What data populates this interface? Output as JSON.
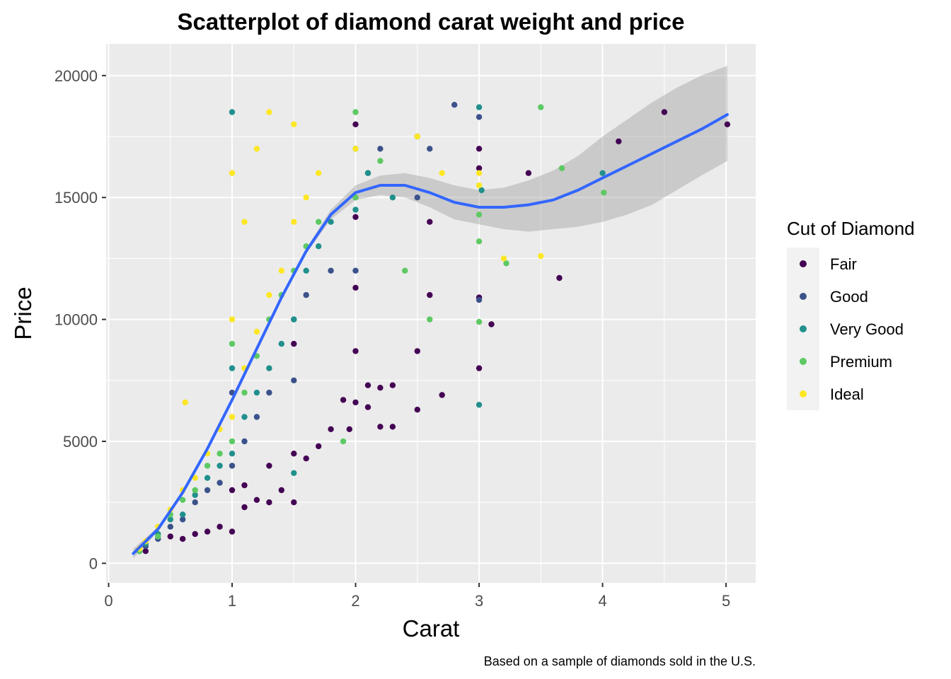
{
  "chart_data": {
    "type": "scatter",
    "title": "Scatterplot of diamond carat weight and price",
    "xlabel": "Carat",
    "ylabel": "Price",
    "caption": "Based on a sample of diamonds sold in the U.S.",
    "xlim": [
      -0.02,
      5.24
    ],
    "ylim": [
      -800,
      21300
    ],
    "x_ticks": [
      0,
      1,
      2,
      3,
      4,
      5
    ],
    "y_ticks": [
      0,
      5000,
      10000,
      15000,
      20000
    ],
    "x_tick_labels": [
      "0",
      "1",
      "2",
      "3",
      "4",
      "5"
    ],
    "y_tick_labels": [
      "0",
      "5000",
      "10000",
      "15000",
      "20000"
    ],
    "grid": true,
    "legend": {
      "title": "Cut of Diamond",
      "position": "right",
      "entries": [
        {
          "label": "Fair",
          "color": "#440154"
        },
        {
          "label": "Good",
          "color": "#3b528b"
        },
        {
          "label": "Very Good",
          "color": "#21908c"
        },
        {
          "label": "Premium",
          "color": "#5dc963"
        },
        {
          "label": "Ideal",
          "color": "#fde725"
        }
      ]
    },
    "series": [
      {
        "name": "Fair",
        "color": "#440154",
        "points": [
          [
            0.25,
            500
          ],
          [
            0.3,
            500
          ],
          [
            0.5,
            1100
          ],
          [
            0.6,
            1000
          ],
          [
            0.7,
            1200
          ],
          [
            0.8,
            1300
          ],
          [
            0.9,
            1500
          ],
          [
            1.0,
            1300
          ],
          [
            1.0,
            3000
          ],
          [
            1.1,
            2300
          ],
          [
            1.1,
            3200
          ],
          [
            1.2,
            2600
          ],
          [
            1.3,
            2500
          ],
          [
            1.3,
            4000
          ],
          [
            1.4,
            3000
          ],
          [
            1.5,
            2500
          ],
          [
            1.5,
            4500
          ],
          [
            1.5,
            9000
          ],
          [
            1.6,
            4300
          ],
          [
            1.7,
            4800
          ],
          [
            1.8,
            5500
          ],
          [
            1.9,
            6700
          ],
          [
            1.95,
            5500
          ],
          [
            2.0,
            6600
          ],
          [
            2.0,
            8700
          ],
          [
            2.0,
            11300
          ],
          [
            2.0,
            14200
          ],
          [
            2.0,
            18000
          ],
          [
            2.1,
            6400
          ],
          [
            2.1,
            7300
          ],
          [
            2.2,
            5600
          ],
          [
            2.2,
            7200
          ],
          [
            2.3,
            5600
          ],
          [
            2.3,
            7300
          ],
          [
            2.5,
            6300
          ],
          [
            2.5,
            8700
          ],
          [
            2.6,
            11000
          ],
          [
            2.6,
            14000
          ],
          [
            2.7,
            6900
          ],
          [
            3.0,
            8000
          ],
          [
            3.0,
            10900
          ],
          [
            3.0,
            16200
          ],
          [
            3.0,
            17000
          ],
          [
            3.1,
            9800
          ],
          [
            3.4,
            16000
          ],
          [
            3.65,
            11700
          ],
          [
            4.13,
            17300
          ],
          [
            4.5,
            18500
          ],
          [
            5.01,
            18000
          ]
        ]
      },
      {
        "name": "Good",
        "color": "#3b528b",
        "points": [
          [
            0.3,
            700
          ],
          [
            0.4,
            1000
          ],
          [
            0.5,
            1500
          ],
          [
            0.6,
            1800
          ],
          [
            0.7,
            2500
          ],
          [
            0.8,
            3000
          ],
          [
            0.9,
            3300
          ],
          [
            1.0,
            4000
          ],
          [
            1.0,
            7000
          ],
          [
            1.1,
            5000
          ],
          [
            1.2,
            6000
          ],
          [
            1.3,
            7000
          ],
          [
            1.5,
            7500
          ],
          [
            1.5,
            10000
          ],
          [
            1.6,
            11000
          ],
          [
            1.8,
            12000
          ],
          [
            2.0,
            12000
          ],
          [
            2.0,
            15000
          ],
          [
            2.1,
            16000
          ],
          [
            2.2,
            17000
          ],
          [
            2.5,
            15000
          ],
          [
            2.6,
            17000
          ],
          [
            2.8,
            18800
          ],
          [
            3.0,
            10800
          ],
          [
            3.0,
            18300
          ]
        ]
      },
      {
        "name": "Very Good",
        "color": "#21908c",
        "points": [
          [
            0.3,
            800
          ],
          [
            0.4,
            1200
          ],
          [
            0.5,
            1800
          ],
          [
            0.6,
            2000
          ],
          [
            0.7,
            2800
          ],
          [
            0.8,
            3500
          ],
          [
            0.9,
            4000
          ],
          [
            1.0,
            4500
          ],
          [
            1.0,
            8000
          ],
          [
            1.0,
            18500
          ],
          [
            1.1,
            6000
          ],
          [
            1.2,
            7000
          ],
          [
            1.3,
            8000
          ],
          [
            1.4,
            9000
          ],
          [
            1.5,
            10000
          ],
          [
            1.5,
            3700
          ],
          [
            1.6,
            12000
          ],
          [
            1.7,
            13000
          ],
          [
            1.8,
            14000
          ],
          [
            2.0,
            14500
          ],
          [
            2.0,
            17000
          ],
          [
            2.1,
            16000
          ],
          [
            2.3,
            15000
          ],
          [
            2.5,
            17500
          ],
          [
            3.0,
            6500
          ],
          [
            3.0,
            18700
          ],
          [
            3.02,
            15300
          ],
          [
            4.0,
            16000
          ]
        ]
      },
      {
        "name": "Premium",
        "color": "#5dc963",
        "points": [
          [
            0.25,
            500
          ],
          [
            0.4,
            1100
          ],
          [
            0.5,
            2000
          ],
          [
            0.6,
            2600
          ],
          [
            0.7,
            3000
          ],
          [
            0.8,
            4000
          ],
          [
            0.9,
            4500
          ],
          [
            1.0,
            5000
          ],
          [
            1.0,
            9000
          ],
          [
            1.1,
            7000
          ],
          [
            1.2,
            8500
          ],
          [
            1.3,
            10000
          ],
          [
            1.4,
            11000
          ],
          [
            1.5,
            12000
          ],
          [
            1.6,
            13000
          ],
          [
            1.7,
            14000
          ],
          [
            1.9,
            5000
          ],
          [
            2.0,
            15000
          ],
          [
            2.0,
            18500
          ],
          [
            2.2,
            16500
          ],
          [
            2.4,
            12000
          ],
          [
            2.6,
            10000
          ],
          [
            3.0,
            13200
          ],
          [
            3.0,
            14300
          ],
          [
            3.0,
            9900
          ],
          [
            3.22,
            12300
          ],
          [
            3.5,
            18700
          ],
          [
            3.67,
            16200
          ],
          [
            4.01,
            15200
          ]
        ]
      },
      {
        "name": "Ideal",
        "color": "#fde725",
        "points": [
          [
            0.25,
            600
          ],
          [
            0.3,
            900
          ],
          [
            0.4,
            1500
          ],
          [
            0.5,
            2200
          ],
          [
            0.6,
            3000
          ],
          [
            0.62,
            6600
          ],
          [
            0.7,
            3500
          ],
          [
            0.8,
            4500
          ],
          [
            0.9,
            5500
          ],
          [
            1.0,
            6000
          ],
          [
            1.0,
            10000
          ],
          [
            1.0,
            16000
          ],
          [
            1.1,
            8000
          ],
          [
            1.1,
            14000
          ],
          [
            1.2,
            9500
          ],
          [
            1.2,
            17000
          ],
          [
            1.3,
            11000
          ],
          [
            1.3,
            18500
          ],
          [
            1.4,
            12000
          ],
          [
            1.5,
            14000
          ],
          [
            1.5,
            18000
          ],
          [
            1.6,
            15000
          ],
          [
            1.7,
            16000
          ],
          [
            2.0,
            17000
          ],
          [
            2.5,
            17500
          ],
          [
            2.7,
            16000
          ],
          [
            3.0,
            15500
          ],
          [
            3.0,
            16000
          ],
          [
            3.2,
            12500
          ],
          [
            3.5,
            12600
          ]
        ]
      }
    ],
    "smooth": {
      "name": "LOESS fit",
      "color": "#3366ff",
      "x": [
        0.2,
        0.4,
        0.6,
        0.8,
        1.0,
        1.2,
        1.4,
        1.6,
        1.8,
        2.0,
        2.2,
        2.4,
        2.6,
        2.8,
        3.0,
        3.2,
        3.4,
        3.6,
        3.8,
        4.0,
        4.2,
        4.4,
        4.6,
        4.8,
        5.01
      ],
      "y": [
        400,
        1400,
        2900,
        4700,
        6700,
        8800,
        10900,
        12800,
        14300,
        15200,
        15500,
        15500,
        15200,
        14800,
        14600,
        14600,
        14700,
        14900,
        15300,
        15800,
        16300,
        16800,
        17300,
        17800,
        18400
      ],
      "lower": [
        200,
        1300,
        2800,
        4600,
        6600,
        8700,
        10800,
        12700,
        14100,
        14900,
        15100,
        15000,
        14600,
        14100,
        13900,
        13700,
        13600,
        13700,
        13800,
        14000,
        14300,
        14700,
        15300,
        15900,
        16500
      ],
      "upper": [
        600,
        1500,
        3000,
        4800,
        6800,
        8900,
        11000,
        12900,
        14500,
        15500,
        15900,
        16000,
        15800,
        15500,
        15300,
        15400,
        15700,
        16100,
        16700,
        17500,
        18200,
        18900,
        19500,
        20000,
        20400
      ]
    }
  }
}
